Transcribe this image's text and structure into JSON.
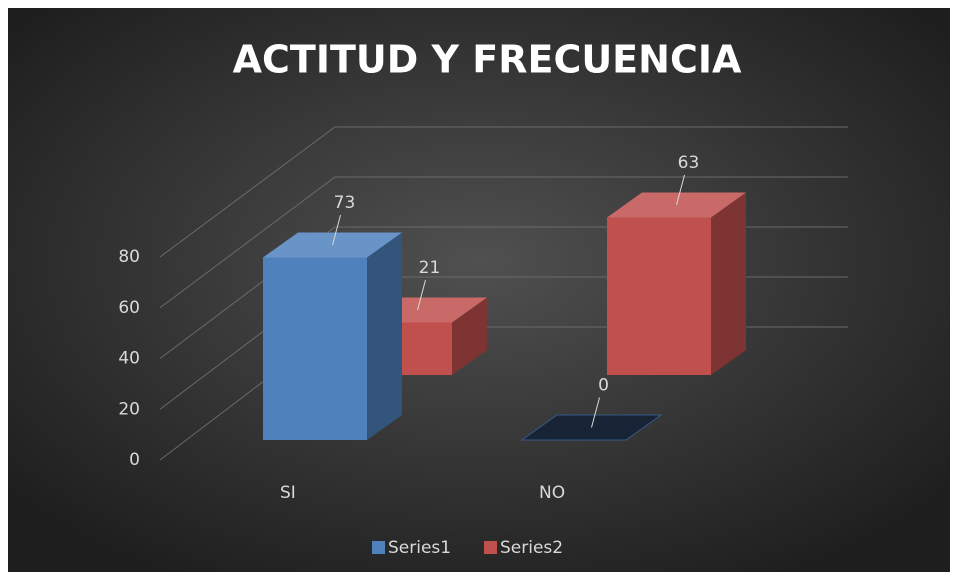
{
  "chart_data": {
    "type": "bar3d",
    "title": "ACTITUD Y FRECUENCIA",
    "categories": [
      "SI",
      "NO"
    ],
    "series": [
      {
        "name": "Series1",
        "color": "#4f81bd",
        "values": [
          73,
          0
        ]
      },
      {
        "name": "Series2",
        "color": "#c0504d",
        "values": [
          21,
          63
        ]
      }
    ],
    "ylim": [
      0,
      80
    ],
    "yticks": [
      0,
      20,
      40,
      60,
      80
    ],
    "grid": true,
    "legend": "bottom"
  }
}
